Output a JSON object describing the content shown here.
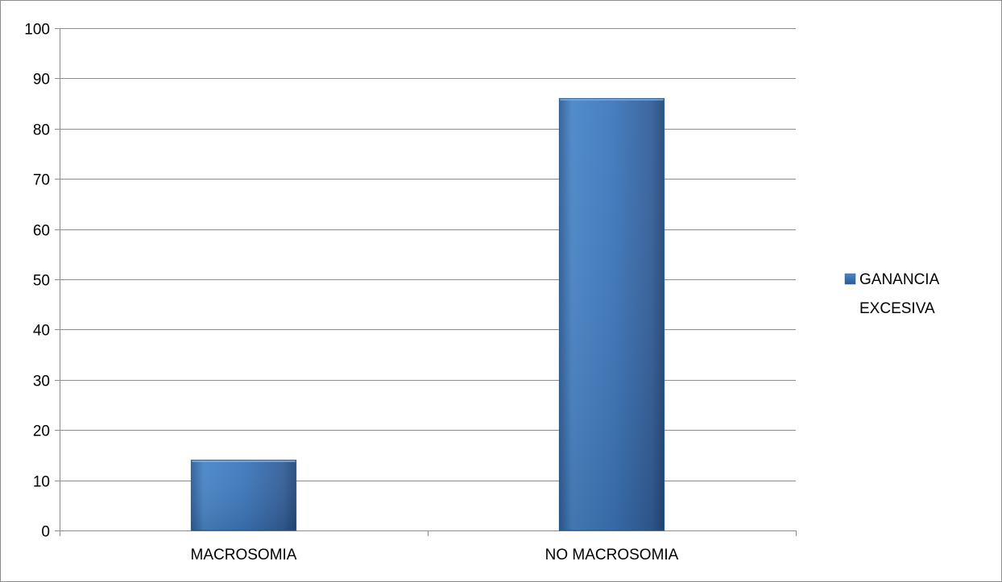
{
  "chart_data": {
    "type": "bar",
    "categories": [
      "MACROSOMIA",
      "NO MACROSOMIA"
    ],
    "series": [
      {
        "name": "GANANCIA EXCESIVA",
        "values": [
          14,
          86
        ]
      }
    ],
    "ylim": [
      0,
      100
    ],
    "yticks": [
      0,
      10,
      20,
      30,
      40,
      50,
      60,
      70,
      80,
      90,
      100
    ],
    "grid": true,
    "legend_position": "right",
    "legend_lines": [
      "GANANCIA",
      "EXCESIVA"
    ],
    "colors": {
      "bar_light": "#4a86c8",
      "bar_dark": "#2c5b94",
      "grid": "#8c8c8c"
    }
  }
}
